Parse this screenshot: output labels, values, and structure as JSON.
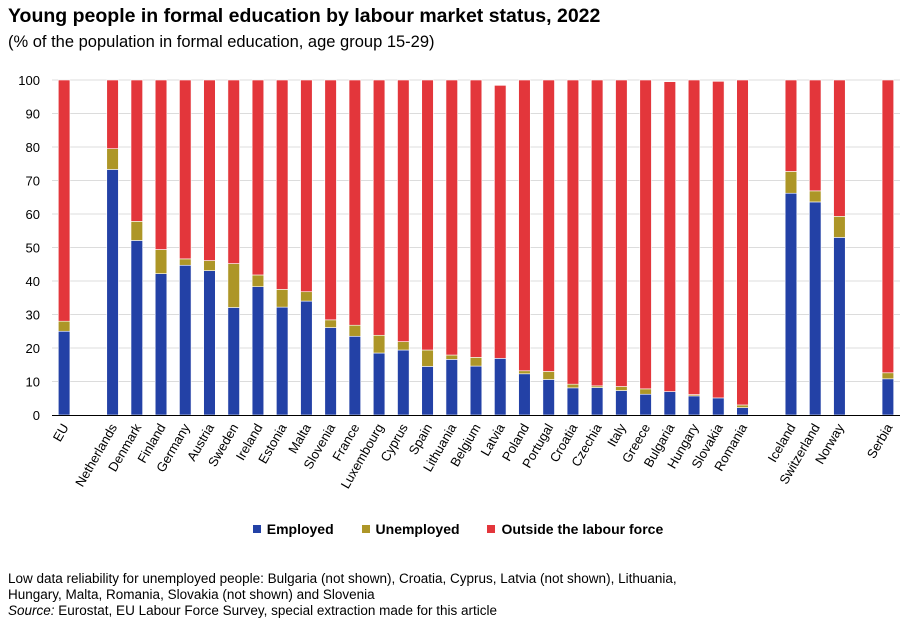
{
  "title": "Young people in formal education by labour market status, 2022",
  "subtitle": "(% of the population in formal education, age group 15-29)",
  "colors": {
    "employed": "#2341a6",
    "unemployed": "#ad9627",
    "outside": "#e3363b"
  },
  "chart_data": {
    "type": "bar",
    "stacked": true,
    "categories": [
      "EU",
      "Netherlands",
      "Denmark",
      "Finland",
      "Germany",
      "Austria",
      "Sweden",
      "Ireland",
      "Estonia",
      "Malta",
      "Slovenia",
      "France",
      "Luxembourg",
      "Cyprus",
      "Spain",
      "Lithuania",
      "Belgium",
      "Latvia",
      "Poland",
      "Portugal",
      "Croatia",
      "Czechia",
      "Italy",
      "Greece",
      "Bulgaria",
      "Hungary",
      "Slovakia",
      "Romania",
      "Iceland",
      "Switzerland",
      "Norway",
      "Serbia"
    ],
    "groups": [
      1,
      27,
      3,
      1
    ],
    "series": [
      {
        "name": "Employed",
        "values": [
          25.0,
          73.3,
          52.1,
          42.2,
          44.7,
          43.1,
          32.1,
          38.3,
          32.2,
          34.0,
          26.1,
          23.5,
          18.5,
          19.4,
          14.5,
          16.6,
          14.6,
          16.9,
          12.3,
          10.6,
          8.1,
          8.2,
          7.3,
          6.2,
          7.0,
          5.7,
          5.1,
          2.2,
          66.2,
          63.6,
          53.0,
          10.8
        ]
      },
      {
        "name": "Unemployed",
        "values": [
          3.0,
          6.2,
          5.7,
          7.2,
          1.9,
          3.0,
          13.1,
          3.5,
          5.3,
          2.8,
          2.3,
          3.3,
          5.3,
          2.5,
          4.9,
          1.3,
          2.6,
          0.0,
          0.9,
          2.4,
          1.1,
          0.5,
          1.2,
          1.6,
          0.0,
          0.4,
          0.0,
          0.8,
          6.5,
          3.3,
          6.3,
          1.8
        ]
      },
      {
        "name": "Outside the labour force",
        "values": [
          72.0,
          20.5,
          42.2,
          50.6,
          53.4,
          53.9,
          54.8,
          58.2,
          62.5,
          63.2,
          71.6,
          73.2,
          76.2,
          78.1,
          80.6,
          82.1,
          82.8,
          81.5,
          86.8,
          87.0,
          90.8,
          91.3,
          91.5,
          92.2,
          92.5,
          93.9,
          94.5,
          97.0,
          27.3,
          33.1,
          40.7,
          87.4
        ]
      }
    ],
    "ylim": [
      0,
      100
    ],
    "yticks": [
      0,
      10,
      20,
      30,
      40,
      50,
      60,
      70,
      80,
      90,
      100
    ],
    "grid": true,
    "legend_position": "bottom"
  },
  "footnotes": {
    "reliability_line1": "Low data reliability for unemployed people: Bulgaria (not shown), Croatia, Cyprus, Latvia (not shown), Lithuania,",
    "reliability_line2": "Hungary, Malta, Romania, Slovakia (not shown) and Slovenia",
    "source_label": "Source:",
    "source_text": " Eurostat, EU Labour Force Survey, special extraction made for this article"
  }
}
